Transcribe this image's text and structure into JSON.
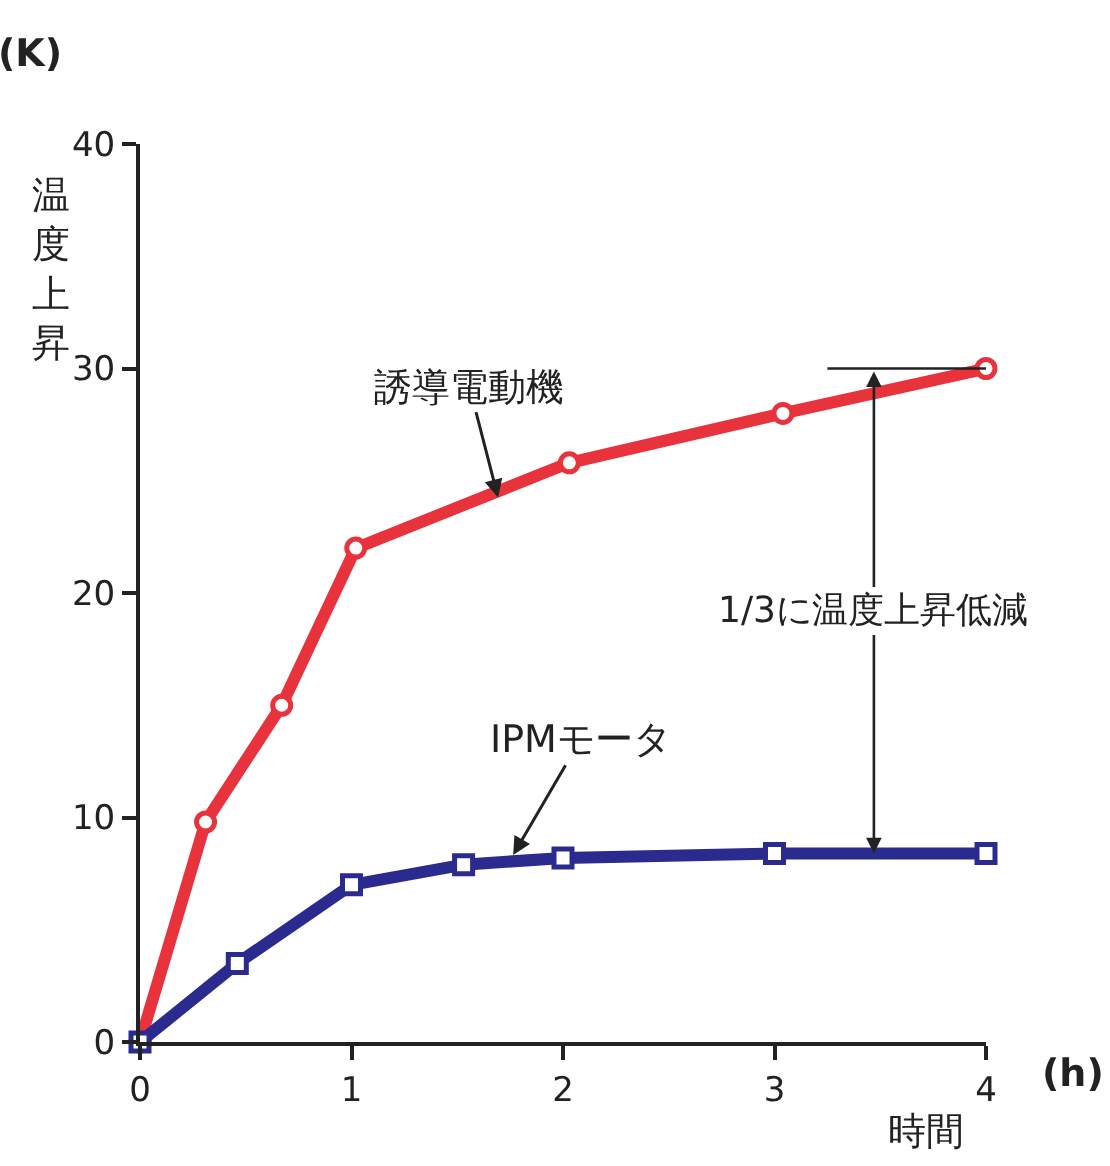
{
  "chart_data": {
    "type": "line",
    "xlabel": "時間",
    "ylabel": "温度上昇",
    "xlim": [
      0,
      4
    ],
    "xticks": [
      0,
      1,
      2,
      3,
      4
    ],
    "ylim": [
      0,
      40
    ],
    "yticks": [
      0,
      10,
      20,
      30,
      40
    ],
    "grid": false,
    "line_style": "solid",
    "series": [
      {
        "color": "#e8323c",
        "marker": "circle",
        "x": [
          0,
          0.31,
          0.67,
          1.02,
          2.03,
          3.04,
          4
        ],
        "values": [
          0,
          9.8,
          15,
          22,
          25.8,
          28,
          30
        ]
      },
      {
        "color": "#2b2a8e",
        "marker": "square",
        "x": [
          0,
          0.46,
          1.0,
          1.53,
          2.0,
          3.0,
          4
        ],
        "values": [
          0,
          3.5,
          7.0,
          7.9,
          8.2,
          8.4,
          8.4
        ]
      }
    ],
    "annotations": [
      {
        "text": "誘導電動機",
        "x": 1.7,
        "y": 24
      },
      {
        "text": "IPMモータ",
        "x": 1.75,
        "y": 8.1
      },
      "1/3に温度上昇低減",
      "(K)",
      "(h)"
    ]
  }
}
